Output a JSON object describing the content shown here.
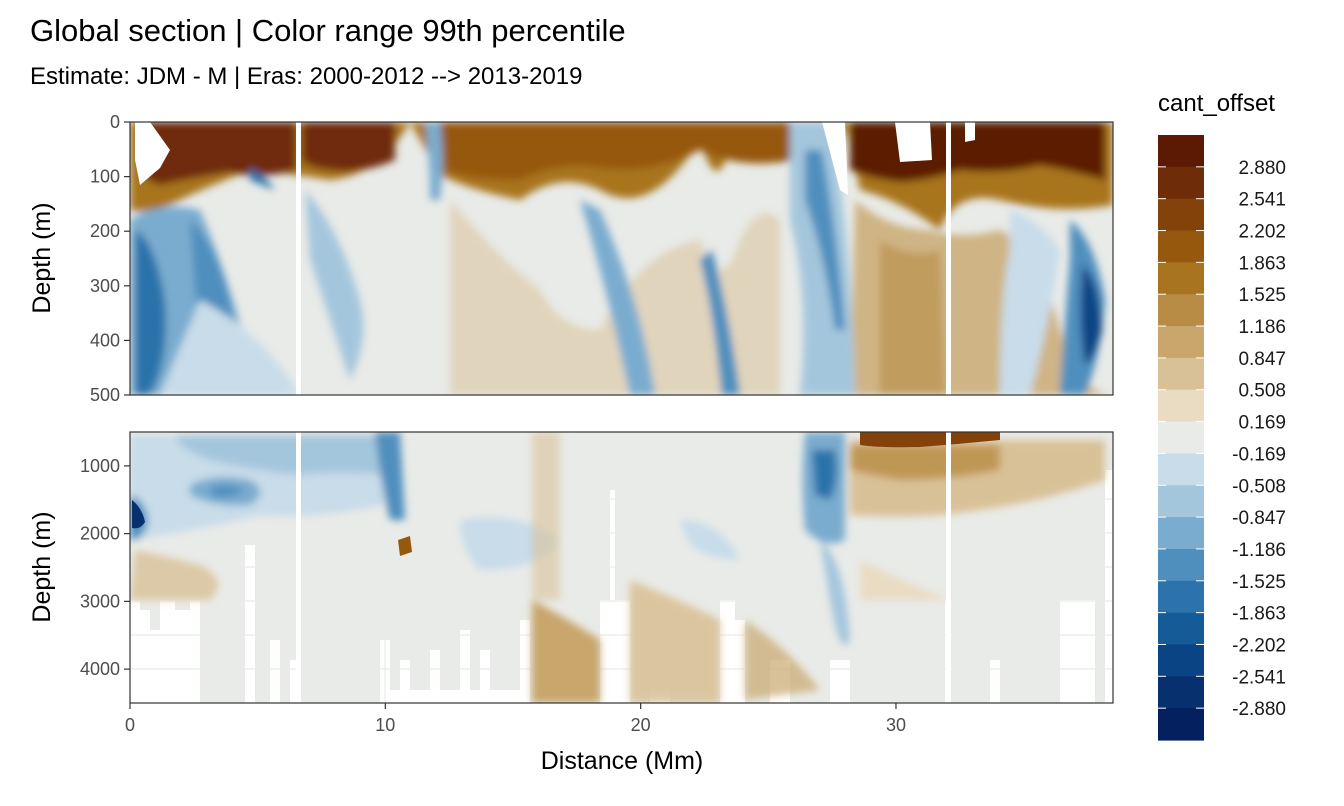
{
  "chart_data": {
    "type": "heatmap",
    "title": "Global section | Color range 99th percentile",
    "subtitle": "Estimate: JDM - M | Eras: 2000-2012 --> 2013-2019",
    "xlabel": "Distance (Mm)",
    "xlim": [
      0,
      38.5
    ],
    "x_ticks": [
      0,
      10,
      20,
      30
    ],
    "x_tick_labels": [
      "0",
      "10",
      "20",
      "30"
    ],
    "panels": [
      {
        "ylabel": "Depth (m)",
        "ylim": [
          500,
          0
        ],
        "y_ticks": [
          0,
          100,
          200,
          300,
          400,
          500
        ],
        "y_tick_labels": [
          "0",
          "100",
          "200",
          "300",
          "400",
          "500"
        ]
      },
      {
        "ylabel": "Depth (m)",
        "ylim": [
          4500,
          500
        ],
        "y_ticks": [
          1000,
          2000,
          3000,
          4000
        ],
        "y_tick_labels": [
          "1000",
          "2000",
          "3000",
          "4000"
        ]
      }
    ],
    "gaps_x": [
      6.5,
      32.1
    ],
    "legend": {
      "title": "cant_offset",
      "position": "right",
      "breaks": [
        2.88,
        2.541,
        2.202,
        1.863,
        1.525,
        1.186,
        0.847,
        0.508,
        0.169,
        -0.169,
        -0.508,
        -0.847,
        -1.186,
        -1.525,
        -1.863,
        -2.202,
        -2.541,
        -2.88
      ],
      "labels": [
        "2.880",
        "2.541",
        "2.202",
        "1.863",
        "1.525",
        "1.186",
        "0.847",
        "0.508",
        "0.169",
        "-0.169",
        "-0.508",
        "-0.847",
        "-1.186",
        "-1.525",
        "-1.863",
        "-2.202",
        "-2.541",
        "-2.880"
      ],
      "colors": [
        "#5c1a05",
        "#6f2c08",
        "#83420a",
        "#96580d",
        "#a8741f",
        "#b88c44",
        "#c8a66c",
        "#d9c197",
        "#e9dcc3",
        "#e9ebe8",
        "#c8dce9",
        "#a4c6dd",
        "#7aaccf",
        "#4f8fbe",
        "#2b73aa",
        "#155b97",
        "#0b4485",
        "#07306f",
        "#04205e"
      ]
    },
    "regions_top": [
      {
        "x": [
          0,
          38.5
        ],
        "z": [
          0,
          500
        ],
        "value": 0.0
      },
      {
        "x": [
          0,
          1.5
        ],
        "z": [
          100,
          450
        ],
        "value": -0.85
      },
      {
        "x": 1.3,
        "z": [
          200,
          400
        ],
        "value": -1.5
      },
      {
        "x": [
          1.5,
          6.5
        ],
        "z": [
          0,
          100
        ],
        "value": 2.2
      },
      {
        "x": [
          2.3,
          4
        ],
        "z": [
          150,
          420
        ],
        "value": -0.7
      },
      {
        "x": [
          5,
          6.5
        ],
        "z": [
          20,
          80
        ],
        "value": 2.9
      },
      {
        "x": [
          6.7,
          10
        ],
        "z": [
          0,
          120
        ],
        "value": 2.6
      },
      {
        "x": [
          7,
          9
        ],
        "z": [
          150,
          300
        ],
        "value": -0.6
      },
      {
        "x": [
          12,
          28
        ],
        "z": [
          0,
          150
        ],
        "value": 1.5
      },
      {
        "x": [
          13,
          17
        ],
        "z": [
          150,
          300
        ],
        "value": 0.3
      },
      {
        "x": [
          18,
          20
        ],
        "z": [
          180,
          500
        ],
        "value": -0.8
      },
      {
        "x": [
          22,
          23.5
        ],
        "z": [
          250,
          500
        ],
        "value": -1.0
      },
      {
        "x": [
          25,
          27.5
        ],
        "z": [
          0,
          500
        ],
        "value": -0.9
      },
      {
        "x": [
          28,
          32
        ],
        "z": [
          0,
          120
        ],
        "value": 2.7
      },
      {
        "x": [
          28,
          38
        ],
        "z": [
          150,
          500
        ],
        "value": 0.6
      },
      {
        "x": 37.5,
        "z": [
          280,
          450
        ],
        "value": -2.8
      }
    ],
    "regions_bottom": [
      {
        "x": [
          0,
          38.5
        ],
        "z": [
          500,
          4500
        ],
        "value": 0.0
      },
      {
        "x": [
          0,
          11
        ],
        "z": [
          500,
          2000
        ],
        "value": -0.4
      },
      {
        "x": 0.2,
        "z": [
          1600,
          2000
        ],
        "value": -2.7
      },
      {
        "x": 3.8,
        "z": [
          1350,
          1600
        ],
        "value": -1.6
      },
      {
        "x": [
          9.5,
          10.5
        ],
        "z": [
          500,
          1200
        ],
        "value": -1.2
      },
      {
        "x": [
          15.8,
          17
        ],
        "z": [
          2200,
          4500
        ],
        "value": 0.8
      },
      {
        "x": [
          19,
          24
        ],
        "z": [
          2600,
          4500
        ],
        "value": 0.4
      },
      {
        "x": [
          26.5,
          28
        ],
        "z": [
          500,
          2000
        ],
        "value": -1.0
      },
      {
        "x": [
          28.5,
          31.5
        ],
        "z": [
          500,
          700
        ],
        "value": 2.2
      },
      {
        "x": [
          28,
          38
        ],
        "z": [
          700,
          1300
        ],
        "value": 0.4
      }
    ]
  }
}
